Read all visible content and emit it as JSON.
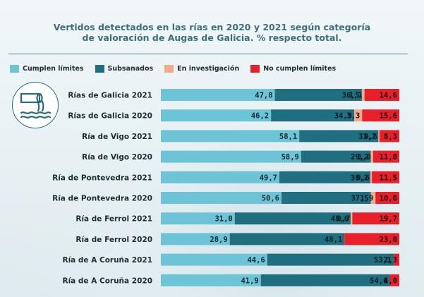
{
  "chart_data": {
    "type": "bar",
    "orientation": "horizontal",
    "stacked": true,
    "title": "Vertidos detectados en las rías en 2020 y 2021 según categoría de valoración de Augas de Galicia. % respecto total.",
    "title_lines": [
      "Vertidos detectados en las rías en 2020 y 2021 según categoría",
      "de valoración de Augas de Galicia. % respecto total."
    ],
    "xlim": [
      0,
      100
    ],
    "legend_position": "top-left",
    "grid": false,
    "categories": [
      "Rías de Galicia 2021",
      "Rías de Galicia 2020",
      "Ría de Vigo 2021",
      "Ría de Vigo 2020",
      "Ría de Pontevedra 2021",
      "Ría de Pontevedra 2020",
      "Ría de Ferrol 2021",
      "Ría de Ferrol 2020",
      "Ría de A Coruña 2021",
      "Ría de A Coruña 2020"
    ],
    "series": [
      {
        "name": "Cumplen límites",
        "color": "#6cc4d6",
        "label_color": "#1a2b30",
        "values": [
          47.8,
          46.2,
          58.1,
          58.9,
          49.7,
          50.6,
          31.0,
          28.9,
          44.6,
          41.9
        ],
        "labels": [
          "47,8",
          "46,2",
          "58,1",
          "58,9",
          "49,7",
          "50,6",
          "31,0",
          "28,9",
          "44,6",
          "41,9"
        ]
      },
      {
        "name": "Subsanados",
        "color": "#1f6f80",
        "label_color": "#0f1e22",
        "values": [
          36.5,
          34.9,
          33.2,
          29.2,
          38.2,
          37.5,
          48.6,
          48.1,
          53.1,
          54.0
        ],
        "labels": [
          "36,5",
          "34,9",
          "33,2",
          "29,2",
          "38,2",
          "37,5",
          "48,6",
          "48,1",
          "53,1",
          "54,0"
        ]
      },
      {
        "name": "En investigación",
        "color": "#f2a98c",
        "label_color": "#0f1e22",
        "values": [
          1.1,
          3.3,
          0.5,
          1.0,
          0.6,
          1.9,
          0.7,
          0,
          0,
          0
        ],
        "labels": [
          "1,1",
          "3,3",
          "0,5",
          "1,0",
          "0,6",
          "1,9",
          "0,7",
          "",
          "",
          ""
        ]
      },
      {
        "name": "No cumplen límites",
        "color": "#e8202a",
        "label_color": "#1a0a0a",
        "values": [
          14.6,
          15.6,
          8.3,
          11.0,
          11.5,
          10.0,
          19.7,
          23.0,
          2.3,
          4.0
        ],
        "labels": [
          "14,6",
          "15,6",
          "8,3",
          "11,0",
          "11,5",
          "10,0",
          "19,7",
          "23,0",
          "2,3",
          "4,0"
        ]
      }
    ]
  },
  "badge": {
    "icon": "sewage-pipe-water-icon"
  }
}
